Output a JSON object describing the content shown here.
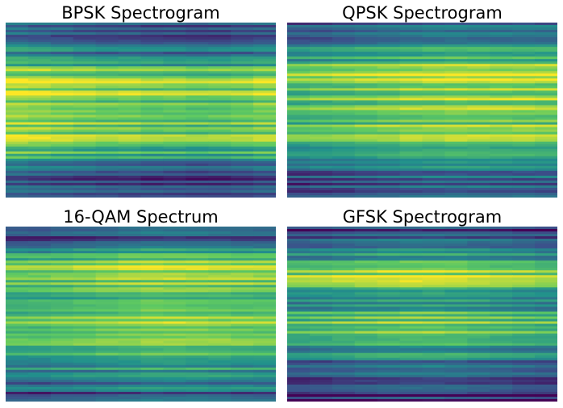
{
  "colormap": "viridis",
  "colors": {
    "viridis_stops": [
      "#440154",
      "#3b528b",
      "#21918c",
      "#5ec962",
      "#fde725"
    ],
    "background": "#ffffff",
    "title": "#000000"
  },
  "chart_data": [
    {
      "type": "heatmap",
      "title": "BPSK Spectrogram",
      "axes": "off",
      "value_range": [
        0,
        1
      ],
      "row_profile": [
        0.3,
        0.26,
        0.22,
        0.36,
        0.44,
        0.4,
        0.48,
        0.62,
        0.74,
        0.8,
        0.86,
        0.78,
        0.84,
        0.76,
        0.82,
        0.7,
        0.8,
        0.74,
        0.84,
        0.72,
        0.78,
        0.66,
        0.58,
        0.46,
        0.4,
        0.3,
        0.24,
        0.28,
        0.2,
        0.26
      ],
      "time_profile": [
        0.08,
        0.06,
        0.04,
        0.02,
        0.0,
        0.0,
        -0.02,
        -0.02,
        -0.04,
        -0.03,
        -0.01,
        0.02
      ]
    },
    {
      "type": "heatmap",
      "title": "QPSK Spectrogram",
      "axes": "off",
      "value_range": [
        0,
        1
      ],
      "row_profile": [
        0.34,
        0.28,
        0.24,
        0.4,
        0.46,
        0.52,
        0.62,
        0.74,
        0.82,
        0.86,
        0.8,
        0.84,
        0.78,
        0.72,
        0.8,
        0.7,
        0.64,
        0.76,
        0.82,
        0.74,
        0.68,
        0.6,
        0.52,
        0.44,
        0.38,
        0.32,
        0.26,
        0.3,
        0.24,
        0.28
      ],
      "time_profile": [
        -0.06,
        -0.04,
        -0.02,
        0.0,
        0.02,
        0.04,
        0.05,
        0.06,
        0.06,
        0.05,
        0.05,
        0.04
      ]
    },
    {
      "type": "heatmap",
      "title": "16-QAM Spectrum",
      "axes": "off",
      "value_range": [
        0,
        1
      ],
      "row_profile": [
        0.34,
        0.3,
        0.22,
        0.42,
        0.52,
        0.62,
        0.74,
        0.8,
        0.72,
        0.78,
        0.68,
        0.76,
        0.66,
        0.7,
        0.62,
        0.78,
        0.84,
        0.74,
        0.8,
        0.72,
        0.64,
        0.7,
        0.58,
        0.5,
        0.44,
        0.38,
        0.3,
        0.34,
        0.24,
        0.22
      ],
      "time_profile": [
        -0.04,
        -0.04,
        -0.02,
        0.0,
        0.02,
        0.04,
        0.06,
        0.06,
        0.05,
        0.04,
        0.03,
        0.02
      ]
    },
    {
      "type": "heatmap",
      "title": "GFSK Spectrogram",
      "axes": "off",
      "value_range": [
        0,
        1
      ],
      "row_profile": [
        0.18,
        0.22,
        0.28,
        0.34,
        0.4,
        0.48,
        0.58,
        0.7,
        0.86,
        0.76,
        0.64,
        0.56,
        0.5,
        0.54,
        0.62,
        0.7,
        0.78,
        0.72,
        0.66,
        0.58,
        0.52,
        0.46,
        0.4,
        0.34,
        0.28,
        0.22,
        0.18,
        0.14,
        0.1,
        0.12
      ],
      "time_profile": [
        -0.04,
        -0.02,
        0.0,
        0.02,
        0.04,
        0.05,
        0.05,
        0.04,
        0.02,
        0.0,
        -0.02,
        -0.04
      ]
    }
  ]
}
